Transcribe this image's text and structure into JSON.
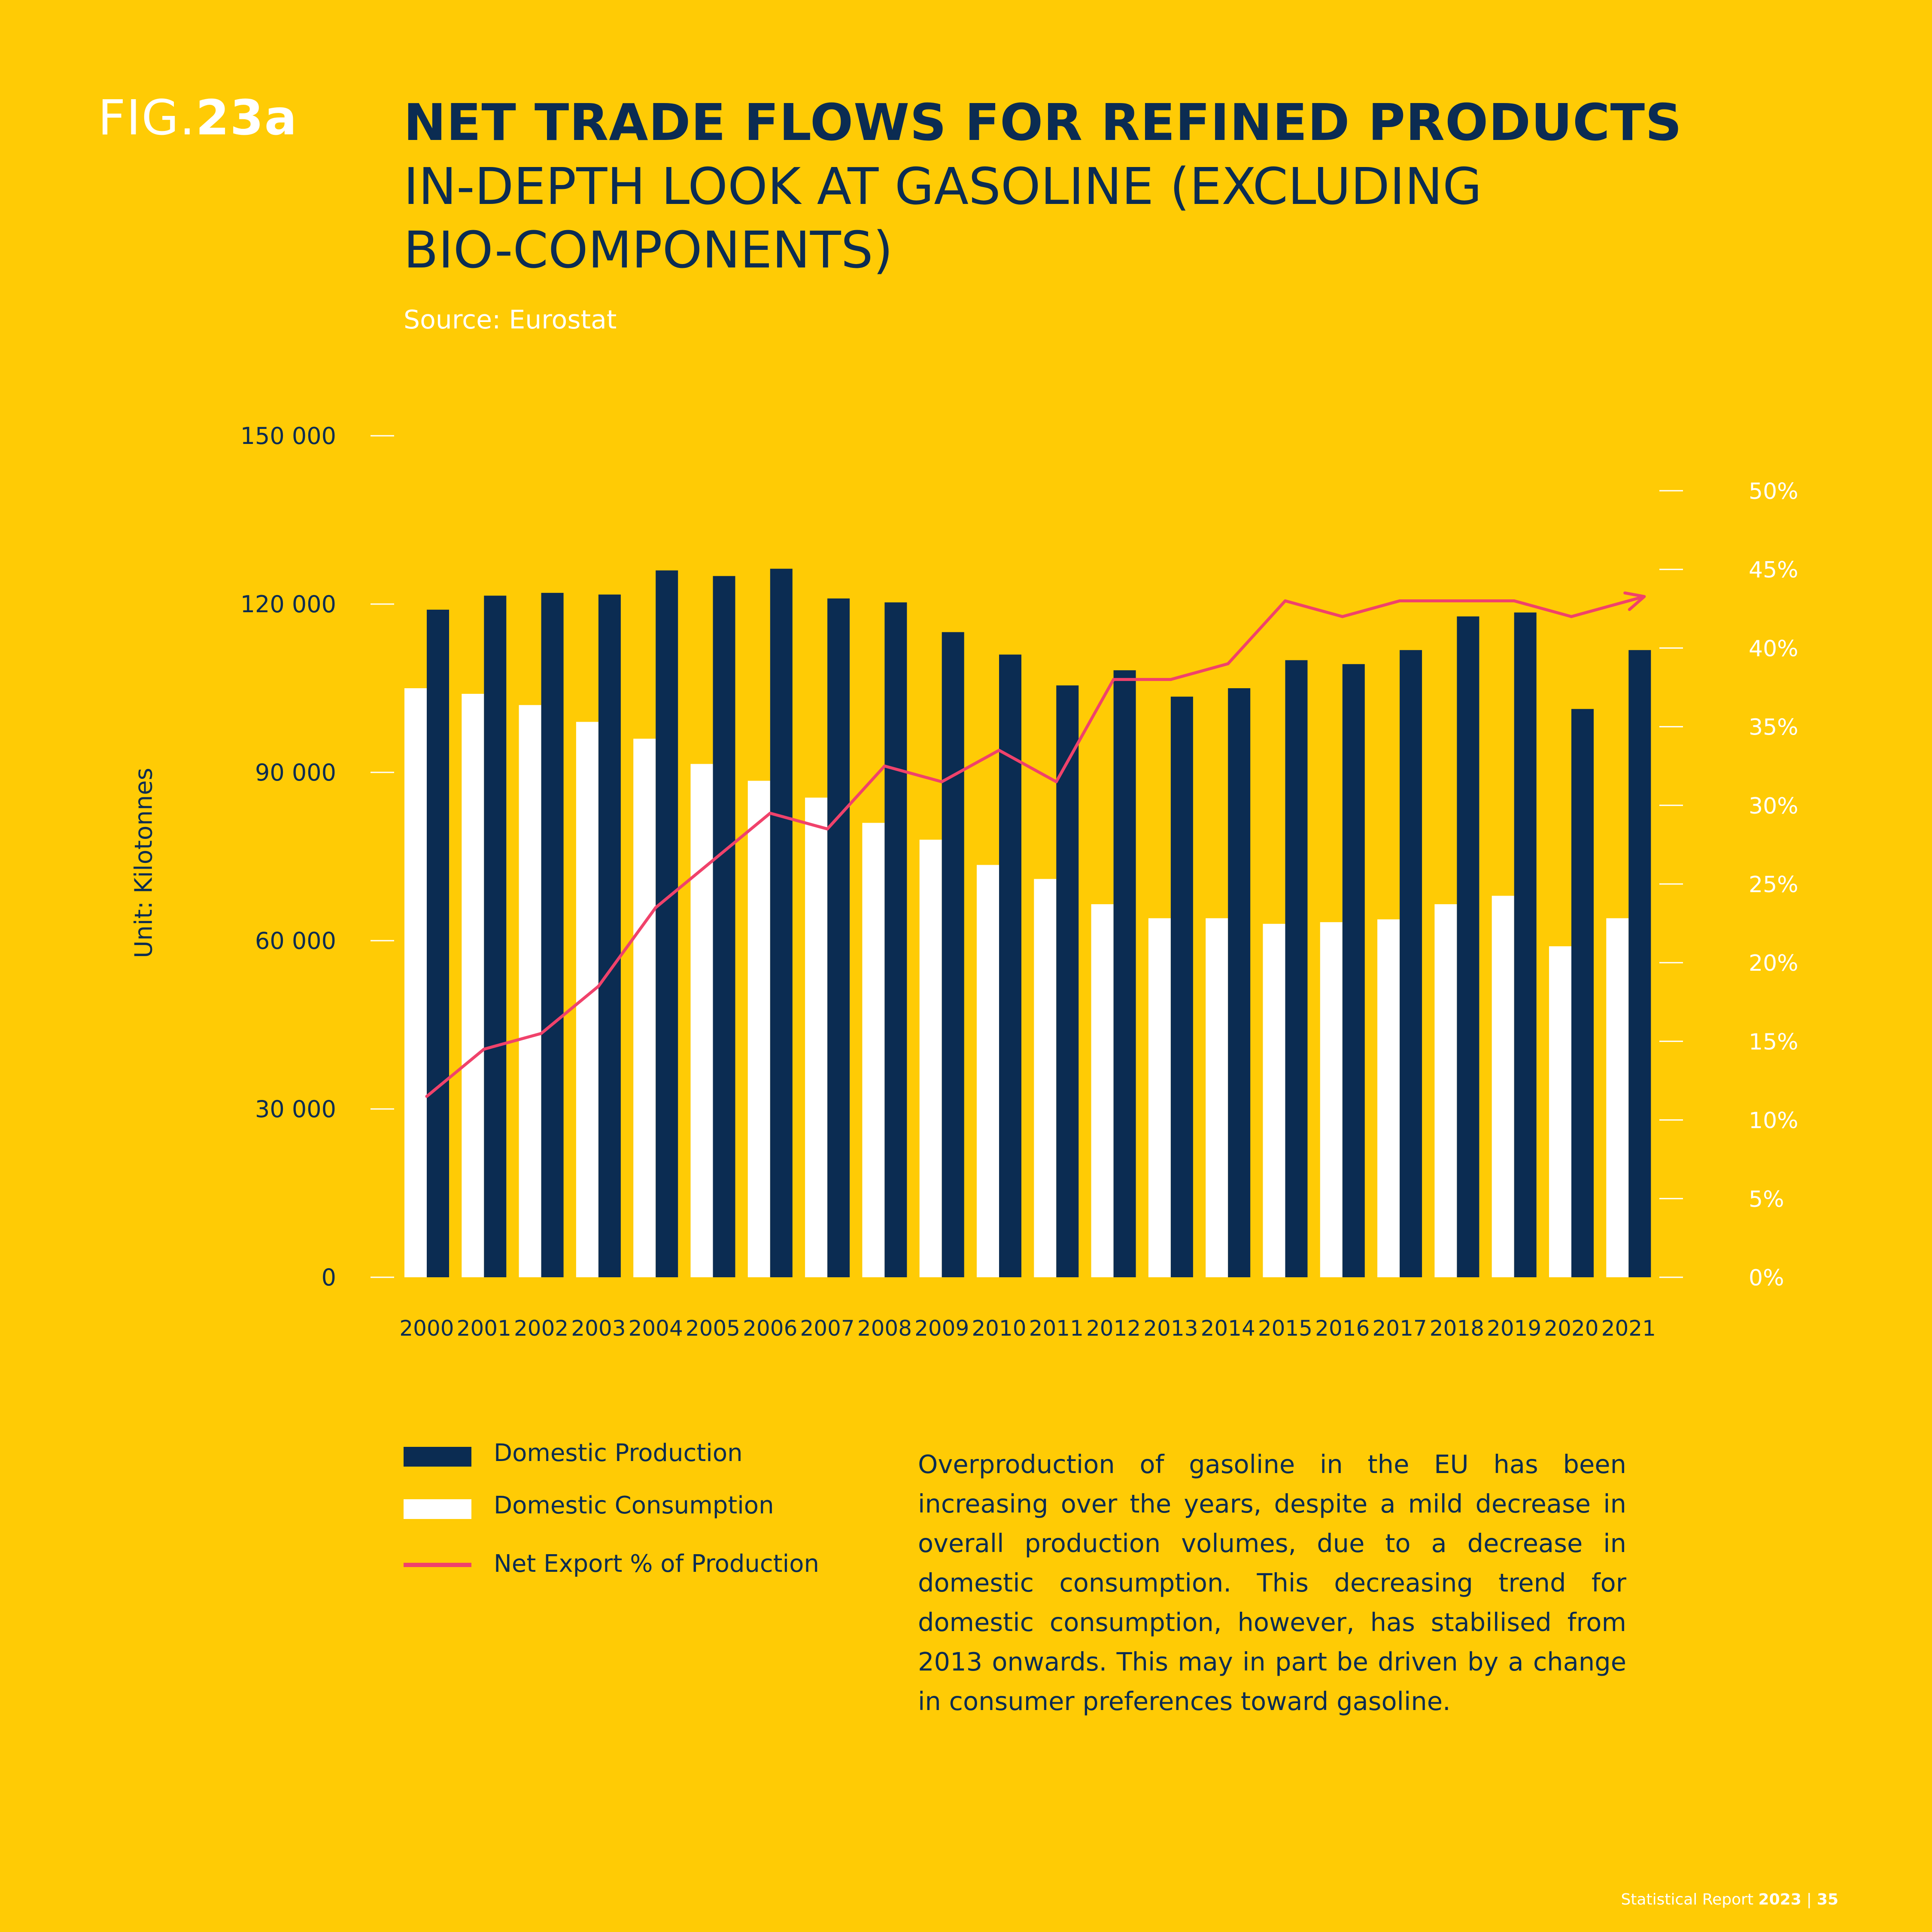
{
  "figure": {
    "prefix": "FIG.",
    "number": "23a"
  },
  "title": {
    "main": "NET TRADE FLOWS FOR REFINED PRODUCTS",
    "sub": "IN-DEPTH LOOK AT GASOLINE (EXCLUDING BIO-COMPONENTS)"
  },
  "source": "Source: Eurostat",
  "unit_label": "Unit: Kilotonnes",
  "colors": {
    "background": "#FFCB05",
    "production": "#0B2C52",
    "consumption": "#FFFFFF",
    "net_export": "#F0426B",
    "text": "#0B2C52"
  },
  "chart_data": {
    "type": "bar",
    "categories": [
      "2000",
      "2001",
      "2002",
      "2003",
      "2004",
      "2005",
      "2006",
      "2007",
      "2008",
      "2009",
      "2010",
      "2011",
      "2012",
      "2013",
      "2014",
      "2015",
      "2016",
      "2017",
      "2018",
      "2019",
      "2020",
      "2021"
    ],
    "series": [
      {
        "name": "Domestic Production",
        "type": "bar",
        "axis": "left",
        "values": [
          119000,
          121500,
          122000,
          121700,
          126000,
          125000,
          126300,
          121000,
          120300,
          115000,
          111000,
          105500,
          108200,
          103500,
          105000,
          110000,
          109300,
          111800,
          117800,
          118500,
          101300,
          111800
        ]
      },
      {
        "name": "Domestic Consumption",
        "type": "bar",
        "axis": "left",
        "values": [
          105000,
          104000,
          102000,
          99000,
          96000,
          91500,
          88500,
          85500,
          81000,
          78000,
          73500,
          71000,
          66500,
          64000,
          64000,
          63000,
          63300,
          63800,
          66500,
          68000,
          59000,
          64000
        ]
      },
      {
        "name": "Net Export % of Production",
        "type": "line",
        "axis": "right",
        "values": [
          11.5,
          14.5,
          15.5,
          18.5,
          23.5,
          26.5,
          29.5,
          28.5,
          32.5,
          31.5,
          33.5,
          31.5,
          38.0,
          38.0,
          39.0,
          43.0,
          42.0,
          43.0,
          43.0,
          43.0,
          42.0,
          43.0
        ]
      }
    ],
    "y_left": {
      "min": 0,
      "max": 150000,
      "ticks": [
        0,
        30000,
        60000,
        90000,
        120000,
        150000
      ],
      "tick_labels": [
        "0",
        "30 000",
        "60 000",
        "90 000",
        "120 000",
        "150 000"
      ]
    },
    "y_right": {
      "min": 0,
      "max": 50,
      "ticks": [
        0,
        5,
        10,
        15,
        20,
        25,
        30,
        35,
        40,
        45,
        50
      ],
      "tick_labels": [
        "0%",
        "5%",
        "10%",
        "15%",
        "20%",
        "25%",
        "30%",
        "35%",
        "40%",
        "45%",
        "50%"
      ]
    },
    "ylabel": "Unit: Kilotonnes",
    "legend_position": "bottom-left",
    "grid": false
  },
  "legend": {
    "items": [
      {
        "label": "Domestic Production"
      },
      {
        "label": "Domestic Consumption"
      },
      {
        "label": "Net Export % of Production"
      }
    ]
  },
  "description": "Overproduction of gasoline in the EU has been increasing over the years, despite a mild decrease in overall production volumes, due to a decrease in domestic consumption. This decreasing trend for domestic consumption, however, has stabilised from 2013 onwards. This may in part be driven by a change in consumer preferences toward gasoline.",
  "footer": {
    "report": "Statistical Report",
    "year": "2023",
    "separator": "|",
    "page": "35"
  }
}
